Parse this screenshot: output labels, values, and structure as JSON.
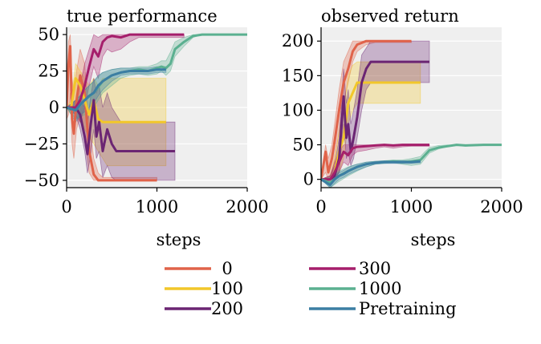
{
  "legend": {
    "entries": [
      {
        "label": "0",
        "color": "#e0634a"
      },
      {
        "label": "100",
        "color": "#f2c72a"
      },
      {
        "label": "200",
        "color": "#6b2573"
      },
      {
        "label": "300",
        "color": "#a51f6b"
      },
      {
        "label": "1000",
        "color": "#5bb090"
      },
      {
        "label": "Pretraining",
        "color": "#3c7ea3"
      }
    ]
  },
  "chart_data": [
    {
      "type": "line",
      "title": "true performance",
      "xlabel": "steps",
      "ylabel": "",
      "xlim": [
        0,
        2000
      ],
      "ylim": [
        -55,
        55
      ],
      "xticks": [
        "0",
        "1000",
        "2000"
      ],
      "yticks": [
        "−50",
        "−25",
        "0",
        "25",
        "50"
      ],
      "grid": true,
      "series": [
        {
          "name": "0",
          "color": "#e0634a",
          "x": [
            0,
            20,
            40,
            60,
            80,
            110,
            150,
            200,
            250,
            300,
            350,
            400,
            500,
            600,
            700,
            800,
            900,
            1000
          ],
          "y": [
            0,
            30,
            42,
            -8,
            -18,
            5,
            22,
            10,
            -30,
            -46,
            -50,
            -50,
            -50,
            -50,
            -50,
            -50,
            -50,
            -50
          ],
          "lo": [
            -8,
            -5,
            10,
            -25,
            -35,
            -15,
            -5,
            -20,
            -45,
            -50,
            -50,
            -50,
            -50,
            -50,
            -50,
            -50,
            -50,
            -50
          ],
          "hi": [
            8,
            45,
            50,
            20,
            10,
            25,
            40,
            30,
            -10,
            -35,
            -45,
            -48,
            -48,
            -48,
            -48,
            -48,
            -48,
            -48
          ]
        },
        {
          "name": "100",
          "color": "#f2c72a",
          "x": [
            0,
            50,
            100,
            150,
            200,
            250,
            300,
            350,
            400,
            450,
            500,
            600,
            700,
            800,
            900,
            1000,
            1100
          ],
          "y": [
            0,
            0,
            20,
            15,
            5,
            -5,
            5,
            -8,
            -10,
            -10,
            -10,
            -10,
            -10,
            -10,
            -10,
            -10,
            -10
          ],
          "lo": [
            0,
            -5,
            0,
            -10,
            -15,
            -20,
            -25,
            -30,
            -35,
            -40,
            -40,
            -40,
            -40,
            -40,
            -40,
            -40,
            -40
          ],
          "hi": [
            0,
            5,
            30,
            25,
            20,
            15,
            20,
            15,
            20,
            20,
            20,
            20,
            20,
            20,
            20,
            20,
            20
          ]
        },
        {
          "name": "200",
          "color": "#6b2573",
          "x": [
            0,
            100,
            150,
            200,
            230,
            260,
            300,
            330,
            360,
            400,
            450,
            500,
            550,
            600,
            700,
            800,
            900,
            1000,
            1100,
            1200
          ],
          "y": [
            0,
            0,
            -5,
            -20,
            -32,
            -15,
            5,
            -20,
            -10,
            -30,
            -15,
            -25,
            -30,
            -30,
            -30,
            -30,
            -30,
            -30,
            -30,
            -30
          ],
          "lo": [
            0,
            -5,
            -15,
            -30,
            -45,
            -35,
            -15,
            -35,
            -30,
            -48,
            -40,
            -48,
            -50,
            -50,
            -50,
            -50,
            -50,
            -50,
            -50,
            -50
          ],
          "hi": [
            0,
            5,
            5,
            0,
            -10,
            5,
            20,
            10,
            15,
            0,
            10,
            0,
            -5,
            -10,
            -10,
            -10,
            -10,
            -10,
            -10,
            -10
          ]
        },
        {
          "name": "300",
          "color": "#a51f6b",
          "x": [
            0,
            100,
            150,
            200,
            250,
            300,
            350,
            400,
            450,
            500,
            600,
            700,
            800,
            900,
            1000,
            1100,
            1200,
            1300
          ],
          "y": [
            0,
            0,
            5,
            15,
            28,
            40,
            35,
            45,
            48,
            49,
            48,
            50,
            50,
            50,
            50,
            50,
            50,
            50
          ],
          "lo": [
            0,
            -5,
            -10,
            0,
            15,
            28,
            20,
            35,
            40,
            38,
            40,
            45,
            48,
            48,
            48,
            48,
            48,
            48
          ],
          "hi": [
            0,
            5,
            15,
            30,
            40,
            50,
            48,
            50,
            50,
            50,
            50,
            50,
            50,
            50,
            50,
            50,
            50,
            50
          ]
        },
        {
          "name": "1000",
          "color": "#5bb090",
          "x": [
            0,
            100,
            200,
            300,
            400,
            500,
            600,
            700,
            800,
            900,
            1000,
            1050,
            1100,
            1150,
            1200,
            1300,
            1400,
            1500,
            1600,
            1800,
            2000
          ],
          "y": [
            0,
            -2,
            5,
            10,
            18,
            22,
            24,
            25,
            26,
            25,
            27,
            28,
            27,
            30,
            40,
            45,
            49,
            50,
            50,
            50,
            50
          ],
          "lo": [
            0,
            -8,
            -5,
            0,
            10,
            15,
            20,
            22,
            23,
            22,
            23,
            25,
            22,
            25,
            35,
            42,
            48,
            50,
            50,
            50,
            50
          ],
          "hi": [
            0,
            5,
            12,
            18,
            24,
            26,
            27,
            27,
            28,
            28,
            30,
            32,
            32,
            38,
            45,
            48,
            50,
            50,
            50,
            50,
            50
          ]
        },
        {
          "name": "Pretraining",
          "color": "#3c7ea3",
          "x": [
            0,
            100,
            150,
            200,
            250,
            300,
            350,
            400,
            450,
            500,
            600,
            700,
            800,
            900,
            1000,
            1100
          ],
          "y": [
            0,
            -2,
            2,
            5,
            8,
            10,
            15,
            18,
            20,
            22,
            24,
            25,
            25,
            25,
            26,
            26
          ],
          "lo": [
            0,
            -10,
            -5,
            -3,
            0,
            3,
            8,
            12,
            15,
            18,
            22,
            23,
            23,
            23,
            24,
            24
          ],
          "hi": [
            0,
            5,
            8,
            12,
            15,
            18,
            22,
            24,
            25,
            26,
            27,
            27,
            27,
            27,
            28,
            28
          ]
        }
      ]
    },
    {
      "type": "line",
      "title": "observed return",
      "xlabel": "steps",
      "ylabel": "",
      "xlim": [
        0,
        2000
      ],
      "ylim": [
        -12,
        220
      ],
      "xticks": [
        "0",
        "1000",
        "2000"
      ],
      "yticks": [
        "0",
        "50",
        "100",
        "150",
        "200"
      ],
      "grid": true,
      "series": [
        {
          "name": "0",
          "color": "#e0634a",
          "x": [
            0,
            50,
            80,
            120,
            150,
            200,
            250,
            300,
            350,
            400,
            500,
            600,
            800,
            1000
          ],
          "y": [
            0,
            40,
            10,
            30,
            55,
            100,
            140,
            160,
            185,
            195,
            200,
            200,
            200,
            200
          ],
          "lo": [
            0,
            10,
            0,
            5,
            30,
            70,
            110,
            140,
            170,
            185,
            195,
            198,
            198,
            198
          ],
          "hi": [
            0,
            50,
            30,
            50,
            80,
            130,
            170,
            185,
            200,
            200,
            200,
            200,
            200,
            200
          ]
        },
        {
          "name": "100",
          "color": "#f2c72a",
          "x": [
            0,
            100,
            150,
            200,
            250,
            300,
            350,
            400,
            500,
            600,
            700,
            800,
            900,
            1000,
            1100
          ],
          "y": [
            0,
            0,
            10,
            40,
            60,
            110,
            125,
            140,
            140,
            140,
            140,
            140,
            140,
            140,
            140
          ],
          "lo": [
            0,
            0,
            0,
            10,
            30,
            80,
            100,
            110,
            110,
            110,
            110,
            110,
            110,
            110,
            110
          ],
          "hi": [
            0,
            5,
            30,
            70,
            100,
            150,
            165,
            170,
            170,
            170,
            170,
            170,
            170,
            170,
            170
          ]
        },
        {
          "name": "200",
          "color": "#6b2573",
          "x": [
            0,
            100,
            150,
            200,
            250,
            280,
            300,
            330,
            360,
            400,
            450,
            500,
            550,
            600,
            700,
            800,
            1000,
            1200
          ],
          "y": [
            0,
            0,
            5,
            30,
            120,
            60,
            80,
            40,
            60,
            90,
            140,
            160,
            170,
            170,
            170,
            170,
            170,
            170
          ],
          "lo": [
            0,
            0,
            0,
            10,
            80,
            30,
            40,
            20,
            30,
            60,
            100,
            130,
            140,
            140,
            140,
            140,
            140,
            140
          ],
          "hi": [
            0,
            5,
            20,
            60,
            160,
            110,
            130,
            80,
            100,
            130,
            180,
            190,
            200,
            200,
            200,
            200,
            200,
            200
          ]
        },
        {
          "name": "300",
          "color": "#a51f6b",
          "x": [
            0,
            100,
            150,
            200,
            250,
            300,
            350,
            400,
            500,
            600,
            700,
            800,
            900,
            1000,
            1100,
            1200
          ],
          "y": [
            0,
            0,
            10,
            25,
            40,
            35,
            45,
            47,
            48,
            49,
            50,
            49,
            50,
            50,
            50,
            50
          ],
          "lo": [
            0,
            0,
            0,
            10,
            25,
            20,
            35,
            40,
            42,
            45,
            47,
            45,
            47,
            48,
            48,
            48
          ],
          "hi": [
            0,
            5,
            25,
            40,
            50,
            50,
            50,
            50,
            50,
            50,
            50,
            50,
            50,
            50,
            50,
            50
          ]
        },
        {
          "name": "1000",
          "color": "#5bb090",
          "x": [
            0,
            100,
            200,
            300,
            400,
            500,
            600,
            700,
            800,
            900,
            1000,
            1100,
            1150,
            1200,
            1300,
            1400,
            1500,
            1600,
            1800,
            2000
          ],
          "y": [
            0,
            -5,
            5,
            12,
            18,
            22,
            24,
            25,
            26,
            25,
            26,
            28,
            35,
            42,
            46,
            48,
            50,
            49,
            50,
            50
          ],
          "lo": [
            0,
            -12,
            -3,
            5,
            12,
            18,
            22,
            23,
            24,
            22,
            20,
            22,
            30,
            38,
            44,
            47,
            49,
            48,
            50,
            50
          ],
          "hi": [
            0,
            3,
            12,
            18,
            22,
            25,
            26,
            27,
            28,
            28,
            30,
            33,
            40,
            46,
            49,
            50,
            50,
            50,
            50,
            50
          ]
        },
        {
          "name": "Pretraining",
          "color": "#3c7ea3",
          "x": [
            0,
            100,
            150,
            200,
            250,
            300,
            350,
            400,
            500,
            600,
            700,
            800,
            900,
            1000,
            1100
          ],
          "y": [
            0,
            -8,
            0,
            5,
            8,
            12,
            15,
            18,
            22,
            24,
            25,
            25,
            25,
            25,
            26
          ],
          "lo": [
            0,
            -12,
            -6,
            0,
            3,
            7,
            10,
            13,
            18,
            22,
            23,
            23,
            23,
            23,
            24
          ],
          "hi": [
            0,
            0,
            5,
            10,
            13,
            17,
            20,
            22,
            25,
            26,
            27,
            27,
            27,
            27,
            28
          ]
        }
      ]
    }
  ]
}
